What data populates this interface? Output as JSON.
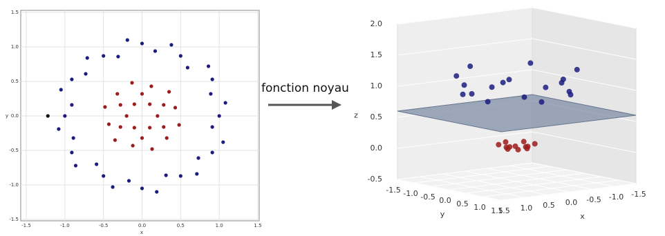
{
  "arrow_label": "fonction noyau",
  "chart_data": [
    {
      "type": "scatter",
      "x_label": "x",
      "y_label": "y",
      "xlim": [
        -1.5,
        1.5
      ],
      "ylim": [
        -1.5,
        1.5
      ],
      "grid": true,
      "xticks": [
        {
          "value": -1.5,
          "label": "-1.5"
        },
        {
          "value": -1.0,
          "label": "-1.0"
        },
        {
          "value": -0.5,
          "label": "-0.5"
        },
        {
          "value": 0,
          "label": "0.0"
        },
        {
          "value": 0.5,
          "label": "0.5"
        },
        {
          "value": 1.0,
          "label": "1.0"
        },
        {
          "value": 1.5,
          "label": "1.5"
        }
      ],
      "yticks": [
        {
          "value": -1.5,
          "label": "-1.5"
        },
        {
          "value": -1.0,
          "label": "-1.0"
        },
        {
          "value": -0.5,
          "label": "-0.5"
        },
        {
          "value": 0,
          "label": "0.0"
        },
        {
          "value": 0.5,
          "label": "0.5"
        },
        {
          "value": 1.0,
          "label": "1.0"
        },
        {
          "value": 1.5,
          "label": "1.5"
        }
      ],
      "series": [
        {
          "color": "#1c1c80",
          "x": [
            1.0,
            1.08,
            0.89,
            0.91,
            0.86,
            0.59,
            0.5,
            0.38,
            0.17,
            0,
            -0.19,
            -0.31,
            -0.5,
            -0.71,
            -0.73,
            -0.91,
            -1.05,
            -0.91,
            -1.0,
            -1.08,
            -0.89,
            -0.91,
            -0.86,
            -0.59,
            -0.5,
            -0.38,
            -0.17,
            0,
            0.19,
            0.31,
            0.5,
            0.71,
            0.73,
            0.91,
            1.05,
            0.91
          ],
          "y": [
            0,
            0.19,
            0.32,
            0.53,
            0.72,
            0.7,
            0.87,
            1.03,
            0.94,
            1.05,
            1.1,
            0.86,
            0.87,
            0.84,
            0.61,
            0.53,
            0.38,
            0.16,
            0,
            -0.19,
            -0.32,
            -0.53,
            -0.72,
            -0.7,
            -0.87,
            -1.03,
            -0.94,
            -1.05,
            -1.1,
            -0.86,
            -0.87,
            -0.84,
            -0.61,
            -0.53,
            -0.38,
            -0.16
          ]
        },
        {
          "color": "#9b1c1c",
          "x": [
            0.2,
            0.43,
            0.28,
            0.35,
            0.1,
            0.12,
            0,
            -0.13,
            -0.1,
            -0.32,
            -0.28,
            -0.48,
            -0.2,
            -0.43,
            -0.28,
            -0.35,
            -0.1,
            -0.12,
            0,
            0.13,
            0.1,
            0.32,
            0.28,
            0.48
          ],
          "y": [
            0,
            0.12,
            0.16,
            0.35,
            0.17,
            0.43,
            0.32,
            0.48,
            0.17,
            0.32,
            0.16,
            0.13,
            0,
            -0.12,
            -0.16,
            -0.35,
            -0.17,
            -0.43,
            -0.32,
            -0.48,
            -0.17,
            -0.32,
            -0.16,
            -0.13
          ]
        },
        {
          "color": "#111111",
          "x": [
            -1.22
          ],
          "y": [
            0
          ]
        }
      ]
    },
    {
      "type": "scatter3d",
      "x_label": "x",
      "y_label": "y",
      "z_label": "z",
      "xlim": [
        -1.5,
        1.5
      ],
      "ylim": [
        -1.5,
        1.5
      ],
      "zlim": [
        -0.5,
        2.0
      ],
      "plane_z": 0.6,
      "xticks": [
        {
          "value": -1.5,
          "label": "-1.5"
        },
        {
          "value": -1.0,
          "label": "-1.0"
        },
        {
          "value": -0.5,
          "label": "-0.5"
        },
        {
          "value": 0,
          "label": "0.0"
        },
        {
          "value": 0.5,
          "label": "0.5"
        },
        {
          "value": 1.0,
          "label": "1.0"
        },
        {
          "value": 1.5,
          "label": "1.5"
        }
      ],
      "yticks": [
        {
          "value": -1.5,
          "label": "-1.5"
        },
        {
          "value": -1.0,
          "label": "-1.0"
        },
        {
          "value": -0.5,
          "label": "-0.5"
        },
        {
          "value": 0,
          "label": "0.0"
        },
        {
          "value": 0.5,
          "label": "0.5"
        },
        {
          "value": 1.0,
          "label": "1.0"
        },
        {
          "value": 1.5,
          "label": "1.5"
        }
      ],
      "zticks": [
        {
          "value": -0.5,
          "label": "-0.5"
        },
        {
          "value": 0,
          "label": "0.0"
        },
        {
          "value": 0.5,
          "label": "0.5"
        },
        {
          "value": 1.0,
          "label": "1.0"
        },
        {
          "value": 1.5,
          "label": "1.5"
        },
        {
          "value": 2.0,
          "label": "2.0"
        }
      ],
      "series": [
        {
          "color": "#1c1c80",
          "x": [
            1.0,
            0.89,
            0.86,
            0.5,
            0.17,
            -0.19,
            -0.5,
            -0.73,
            -1.05,
            -1.0,
            -0.89,
            -0.86,
            -0.5,
            -0.17,
            0.19,
            0.5,
            0.73,
            1.05
          ],
          "y": [
            0,
            0.32,
            0.72,
            0.87,
            0.94,
            1.1,
            0.87,
            0.61,
            0.38,
            0,
            -0.32,
            -0.72,
            -0.87,
            -0.94,
            -1.1,
            -0.87,
            -0.61,
            -0.38
          ],
          "z": [
            1.0,
            0.9,
            1.25,
            1.0,
            0.9,
            1.25,
            1.0,
            0.9,
            1.25,
            1.0,
            0.9,
            1.25,
            1.0,
            0.9,
            1.25,
            1.0,
            0.9,
            1.25
          ]
        },
        {
          "color": "#9b1c1c",
          "x": [
            0.2,
            0.28,
            0.1,
            0,
            -0.1,
            -0.28,
            -0.2,
            -0.28,
            -0.1,
            0,
            0.1,
            0.28
          ],
          "y": [
            0,
            0.16,
            0.17,
            0.32,
            0.17,
            0.16,
            0,
            -0.16,
            -0.17,
            -0.32,
            -0.17,
            -0.16
          ],
          "z": [
            0.04,
            0.1,
            0.04,
            0.1,
            0.04,
            0.1,
            0.04,
            0.1,
            0.04,
            0.1,
            0.04,
            0.1
          ]
        }
      ]
    }
  ]
}
